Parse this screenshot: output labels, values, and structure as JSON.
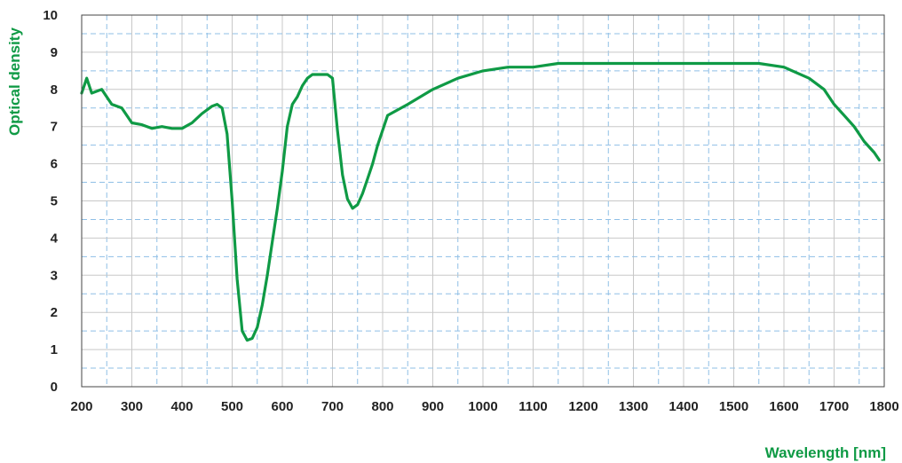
{
  "chart_data": {
    "type": "line",
    "xlabel": "Wavelength [nm]",
    "ylabel": "Optical density",
    "xlim": [
      200,
      1800
    ],
    "ylim": [
      0,
      10
    ],
    "x_ticks": [
      200,
      300,
      400,
      500,
      600,
      700,
      800,
      900,
      1000,
      1100,
      1200,
      1300,
      1400,
      1500,
      1600,
      1700,
      1800
    ],
    "y_ticks": [
      0,
      1,
      2,
      3,
      4,
      5,
      6,
      7,
      8,
      9,
      10
    ],
    "grid": true,
    "series": [
      {
        "color": "#0f9a45",
        "x": [
          200,
          210,
          220,
          240,
          260,
          280,
          300,
          320,
          340,
          360,
          380,
          400,
          420,
          440,
          460,
          470,
          480,
          490,
          500,
          510,
          520,
          530,
          540,
          550,
          560,
          570,
          580,
          590,
          600,
          610,
          620,
          630,
          640,
          650,
          660,
          670,
          680,
          690,
          700,
          710,
          720,
          730,
          740,
          750,
          760,
          770,
          780,
          790,
          800,
          810,
          850,
          900,
          950,
          1000,
          1050,
          1100,
          1150,
          1200,
          1250,
          1300,
          1350,
          1400,
          1450,
          1500,
          1550,
          1600,
          1650,
          1680,
          1700,
          1720,
          1740,
          1760,
          1780,
          1790
        ],
        "y": [
          7.9,
          8.3,
          7.9,
          8.0,
          7.6,
          7.5,
          7.1,
          7.05,
          6.95,
          7.0,
          6.95,
          6.95,
          7.1,
          7.35,
          7.55,
          7.6,
          7.5,
          6.8,
          5.0,
          2.9,
          1.5,
          1.25,
          1.3,
          1.6,
          2.2,
          3.0,
          3.9,
          4.8,
          5.8,
          7.0,
          7.6,
          7.8,
          8.1,
          8.3,
          8.4,
          8.4,
          8.4,
          8.4,
          8.3,
          6.9,
          5.7,
          5.05,
          4.8,
          4.9,
          5.2,
          5.6,
          6.0,
          6.5,
          6.9,
          7.3,
          7.6,
          8.0,
          8.3,
          8.5,
          8.6,
          8.6,
          8.7,
          8.7,
          8.7,
          8.7,
          8.7,
          8.7,
          8.7,
          8.7,
          8.7,
          8.6,
          8.3,
          8.0,
          7.6,
          7.3,
          7.0,
          6.6,
          6.3,
          6.1
        ]
      }
    ]
  }
}
